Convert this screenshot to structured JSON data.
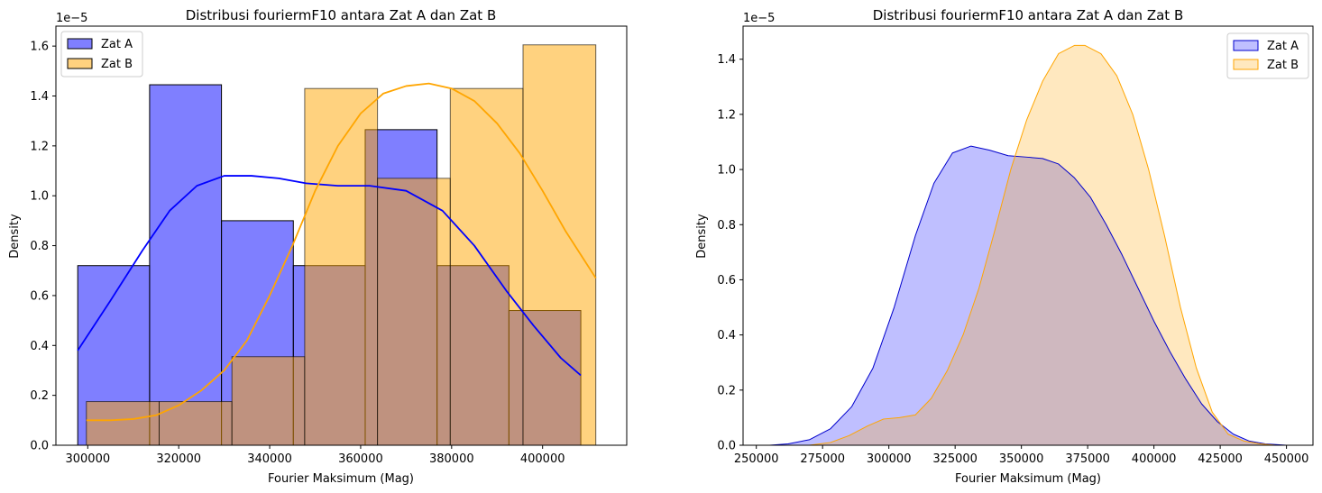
{
  "colors": {
    "zat_a": "#0000cc",
    "zat_b": "#ffa500"
  },
  "chart_data": [
    {
      "type": "histogram_kde",
      "title": "Distribusi fouriermF10 antara Zat A dan Zat B",
      "xlabel": "Fourier Maksimum (Mag)",
      "ylabel": "Density",
      "y_offset_label": "1e−5",
      "y_scale": 1e-05,
      "xlim": [
        293000,
        418500
      ],
      "ylim": [
        0,
        1.68
      ],
      "xticks": [
        300000,
        320000,
        340000,
        360000,
        380000,
        400000
      ],
      "yticks": [
        0.0,
        0.2,
        0.4,
        0.6,
        0.8,
        1.0,
        1.2,
        1.4,
        1.6
      ],
      "legend_position": "upper left",
      "series": [
        {
          "name": "Zat A",
          "color": "#0000ff",
          "bin_edges": [
            297800,
            313600,
            329400,
            345200,
            361000,
            376800,
            392600,
            408400
          ],
          "densities": [
            0.72,
            1.445,
            0.9,
            0.72,
            1.265,
            0.72,
            0.54
          ],
          "kde": {
            "x": [
              297800,
              305000,
              312000,
              318000,
              324000,
              330000,
              336000,
              342000,
              348000,
              355000,
              362000,
              370000,
              378000,
              385000,
              392000,
              398000,
              404000,
              408400
            ],
            "y": [
              0.38,
              0.58,
              0.78,
              0.94,
              1.04,
              1.08,
              1.08,
              1.07,
              1.05,
              1.04,
              1.04,
              1.02,
              0.94,
              0.8,
              0.62,
              0.48,
              0.35,
              0.28
            ]
          }
        },
        {
          "name": "Zat B",
          "color": "#ffa500",
          "bin_edges": [
            299700,
            315700,
            331700,
            347700,
            363700,
            379700,
            395700,
            411700
          ],
          "densities": [
            0.175,
            0.175,
            0.355,
            1.43,
            1.07,
            1.43,
            1.605
          ],
          "kde": {
            "x": [
              299700,
              305000,
              310000,
              315000,
              320000,
              325000,
              330000,
              335000,
              340000,
              345000,
              350000,
              355000,
              360000,
              365000,
              370000,
              375000,
              380000,
              385000,
              390000,
              395000,
              400000,
              405000,
              411700
            ],
            "y": [
              0.1,
              0.1,
              0.105,
              0.12,
              0.16,
              0.22,
              0.3,
              0.42,
              0.6,
              0.8,
              1.02,
              1.2,
              1.33,
              1.41,
              1.44,
              1.45,
              1.43,
              1.38,
              1.29,
              1.17,
              1.02,
              0.86,
              0.67
            ]
          }
        }
      ]
    },
    {
      "type": "kde",
      "title": "Distribusi fouriermF10 antara Zat A dan Zat B",
      "xlabel": "Fourier Maksimum (Mag)",
      "ylabel": "Density",
      "y_offset_label": "1e−5",
      "y_scale": 1e-05,
      "xlim": [
        245000,
        460000
      ],
      "ylim": [
        0,
        1.52
      ],
      "xticks": [
        250000,
        275000,
        300000,
        325000,
        350000,
        375000,
        400000,
        425000,
        450000
      ],
      "yticks": [
        0.0,
        0.2,
        0.4,
        0.6,
        0.8,
        1.0,
        1.2,
        1.4
      ],
      "legend_position": "upper right",
      "series": [
        {
          "name": "Zat A",
          "color": "#0000cc",
          "x": [
            255000,
            262000,
            270000,
            278000,
            286000,
            294000,
            302000,
            310000,
            317000,
            324000,
            331000,
            338000,
            345000,
            352000,
            358000,
            364000,
            370000,
            376000,
            382000,
            388000,
            394000,
            400000,
            406000,
            412000,
            418000,
            424000,
            430000,
            436000,
            442000,
            450000
          ],
          "y": [
            0.0,
            0.005,
            0.02,
            0.06,
            0.14,
            0.28,
            0.5,
            0.76,
            0.95,
            1.06,
            1.085,
            1.07,
            1.05,
            1.045,
            1.04,
            1.02,
            0.97,
            0.9,
            0.8,
            0.69,
            0.57,
            0.45,
            0.34,
            0.24,
            0.15,
            0.085,
            0.04,
            0.015,
            0.005,
            0.0
          ]
        },
        {
          "name": "Zat B",
          "color": "#ffa500",
          "x": [
            270000,
            278000,
            285000,
            292000,
            298000,
            304000,
            310000,
            316000,
            322000,
            328000,
            334000,
            340000,
            346000,
            352000,
            358000,
            364000,
            370000,
            374000,
            380000,
            386000,
            392000,
            398000,
            404000,
            410000,
            416000,
            422000,
            428000,
            434000,
            440000,
            446000,
            452000
          ],
          "y": [
            0.0,
            0.01,
            0.035,
            0.07,
            0.095,
            0.1,
            0.11,
            0.17,
            0.27,
            0.4,
            0.57,
            0.78,
            1.0,
            1.18,
            1.32,
            1.42,
            1.45,
            1.45,
            1.42,
            1.34,
            1.2,
            1.0,
            0.76,
            0.5,
            0.28,
            0.12,
            0.04,
            0.015,
            0.005,
            0.0,
            0.0
          ]
        }
      ]
    }
  ]
}
